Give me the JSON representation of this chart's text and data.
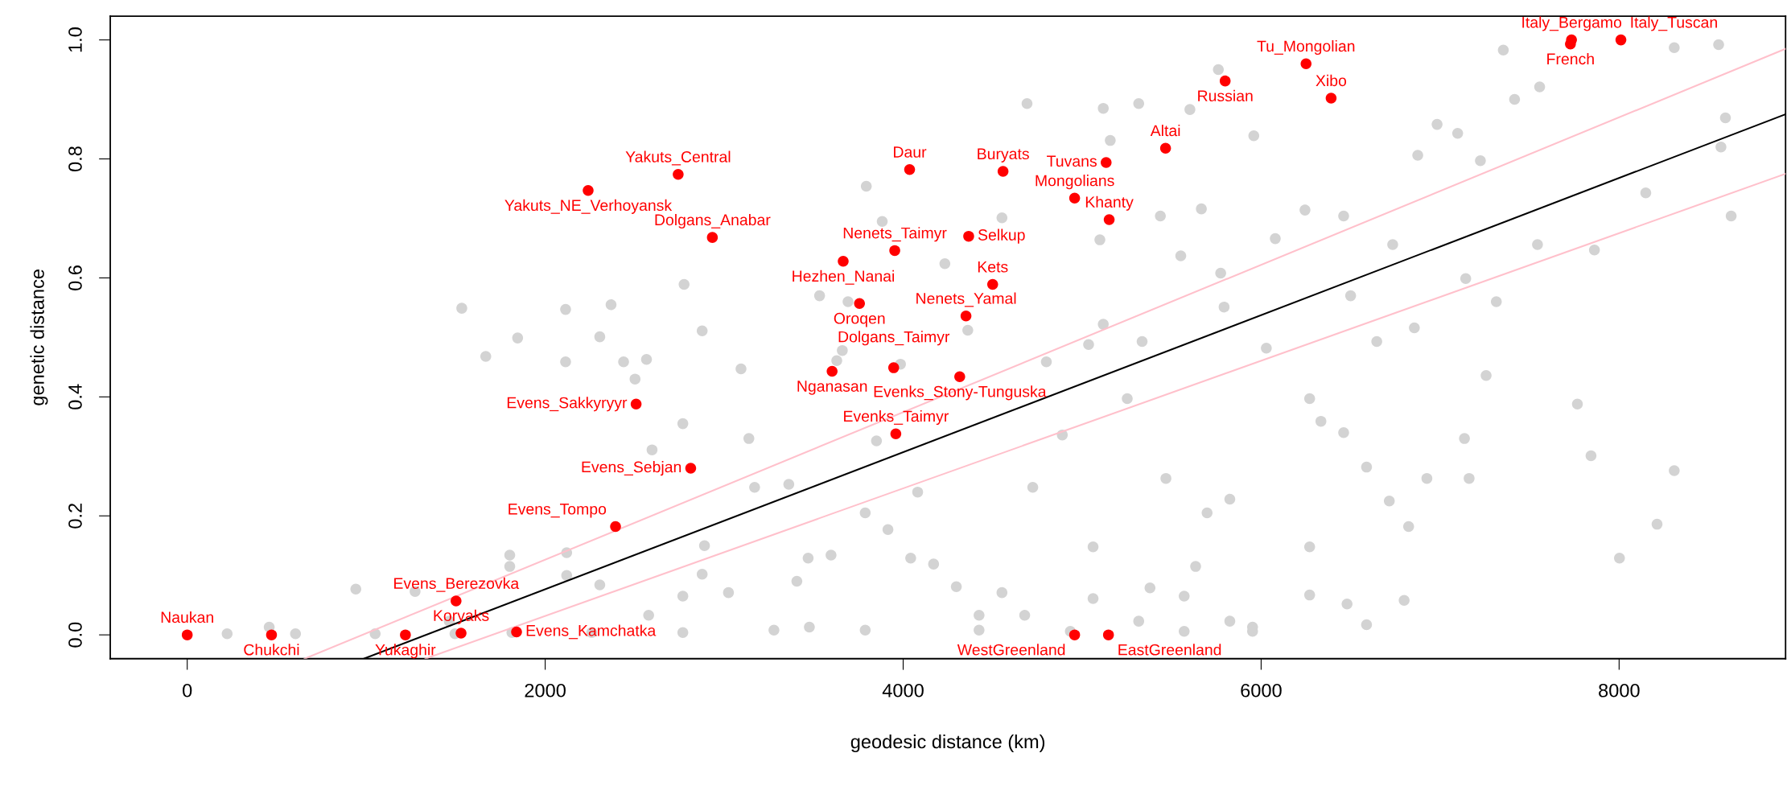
{
  "chart_data": {
    "type": "scatter",
    "xlabel": "geodesic distance (km)",
    "ylabel": "genetic distance",
    "xlim": [
      -430,
      8930
    ],
    "ylim": [
      -0.04,
      1.04
    ],
    "xticks": [
      0,
      2000,
      4000,
      6000,
      8000
    ],
    "yticks": [
      {
        "value": 0,
        "label": "0.0"
      },
      {
        "value": 0.2,
        "label": "0.2"
      },
      {
        "value": 0.4,
        "label": "0.4"
      },
      {
        "value": 0.6,
        "label": "0.6"
      },
      {
        "value": 0.8,
        "label": "0.8"
      },
      {
        "value": 1.0,
        "label": "1.0"
      }
    ],
    "grid": false,
    "marker": "circle",
    "series": [
      {
        "color": "#d3d3d3",
        "x": [
          223,
          605,
          1050,
          1496,
          1814,
          2260,
          2769,
          3278,
          3788,
          4424,
          4934,
          5570,
          5952,
          6589,
          6480,
          458,
          942,
          1273,
          1464,
          1802,
          1802,
          2120,
          2120,
          2305,
          2578,
          2769,
          3024,
          3406,
          3469,
          3597,
          3788,
          3915,
          4042,
          4170,
          4297,
          4424,
          4552,
          4679,
          5061,
          5316,
          5570,
          5825,
          5952,
          1534,
          1668,
          1846,
          2114,
          2114,
          2305,
          2368,
          2438,
          2502,
          2566,
          2597,
          2769,
          2776,
          2877,
          2877,
          2890,
          3094,
          3138,
          3170,
          3361,
          3476,
          3533,
          3794,
          3629,
          3660,
          3692,
          3851,
          3883,
          3985,
          4081,
          4233,
          4361,
          4552,
          4692,
          4724,
          4800,
          4889,
          5036,
          5099,
          5118,
          5118,
          5157,
          5252,
          5316,
          5335,
          5437,
          5551,
          5602,
          5666,
          5774,
          5761,
          5793,
          5959,
          6029,
          6079,
          6245,
          6461,
          6500,
          6646,
          6735,
          6856,
          6875,
          6983,
          7098,
          7225,
          7353,
          7416,
          7556,
          7767,
          7843,
          8002,
          8308,
          8569,
          8626,
          7257,
          7314,
          7544,
          7862,
          8149,
          8212,
          8556,
          8594,
          6799,
          6824,
          7143,
          6926,
          7162,
          7136,
          6716,
          6271,
          6271,
          6334,
          6461,
          6589,
          6271,
          5468,
          5698,
          5825,
          5634,
          5379,
          5061,
          8308
        ],
        "values": [
          0.002,
          0.002,
          0.002,
          0.002,
          0.004,
          0.004,
          0.004,
          0.008,
          0.008,
          0.008,
          0.006,
          0.006,
          0.006,
          0.017,
          0.052,
          0.013,
          0.077,
          0.073,
          0.023,
          0.115,
          0.134,
          0.1,
          0.138,
          0.084,
          0.033,
          0.065,
          0.071,
          0.09,
          0.129,
          0.134,
          0.205,
          0.177,
          0.129,
          0.119,
          0.081,
          0.033,
          0.071,
          0.033,
          0.061,
          0.023,
          0.065,
          0.023,
          0.013,
          0.549,
          0.468,
          0.499,
          0.547,
          0.459,
          0.501,
          0.555,
          0.459,
          0.43,
          0.463,
          0.311,
          0.355,
          0.589,
          0.511,
          0.102,
          0.15,
          0.447,
          0.33,
          0.248,
          0.253,
          0.013,
          0.57,
          0.754,
          0.461,
          0.478,
          0.56,
          0.326,
          0.695,
          0.455,
          0.24,
          0.624,
          0.512,
          0.701,
          0.893,
          0.248,
          0.459,
          0.336,
          0.488,
          0.664,
          0.522,
          0.885,
          0.831,
          0.397,
          0.893,
          0.493,
          0.704,
          0.637,
          0.883,
          0.716,
          0.608,
          0.95,
          0.551,
          0.839,
          0.482,
          0.666,
          0.714,
          0.704,
          0.57,
          0.493,
          0.656,
          0.516,
          0.806,
          0.858,
          0.843,
          0.797,
          0.983,
          0.9,
          0.921,
          0.388,
          0.301,
          0.129,
          0.987,
          0.82,
          0.704,
          0.436,
          0.56,
          0.656,
          0.647,
          0.743,
          0.186,
          0.992,
          0.869,
          0.058,
          0.182,
          0.599,
          0.263,
          0.263,
          0.33,
          0.225,
          0.148,
          0.397,
          0.359,
          0.34,
          0.282,
          0.067,
          0.263,
          0.205,
          0.228,
          0.115,
          0.079,
          0.148,
          0.276
        ]
      },
      {
        "type": "line",
        "marker": "none",
        "color": "#000000",
        "x": [
          987,
          8930
        ],
        "values": [
          -0.04,
          0.875
        ]
      },
      {
        "type": "line",
        "marker": "none",
        "color": "#ffc0cb",
        "x": [
          656,
          8930
        ],
        "values": [
          -0.04,
          0.985
        ]
      },
      {
        "type": "line",
        "marker": "none",
        "color": "#ffc0cb",
        "x": [
          1331,
          8930
        ],
        "values": [
          -0.04,
          0.775
        ]
      },
      {
        "color": "#ff0000",
        "x": [
          0,
          471,
          1219,
          1530,
          1840,
          1502,
          2393,
          2813,
          2508,
          3959,
          3603,
          3947,
          4316,
          3756,
          4351,
          4500,
          3665,
          3953,
          4366,
          5151,
          4958,
          2934,
          2240,
          2743,
          4036,
          4558,
          5134,
          5466,
          5799,
          6251,
          6391,
          4958,
          5147,
          7734,
          8010,
          7728
        ],
        "values": [
          0,
          0,
          0,
          0.003,
          0.005,
          0.057,
          0.182,
          0.28,
          0.388,
          0.338,
          0.443,
          0.449,
          0.434,
          0.557,
          0.536,
          0.589,
          0.628,
          0.646,
          0.67,
          0.698,
          0.734,
          0.668,
          0.747,
          0.774,
          0.782,
          0.779,
          0.794,
          0.818,
          0.931,
          0.96,
          0.902,
          0,
          0,
          1.0,
          1.0,
          0.993
        ],
        "value_labels": [
          "Naukan",
          "Chukchi",
          "Yukaghir",
          "Koryaks",
          "Evens_Kamchatka",
          "Evens_Berezovka",
          "Evens_Tompo",
          "Evens_Sebjan",
          "Evens_Sakkyryyr",
          "Evenks_Taimyr",
          "Nganasan",
          "Dolgans_Taimyr",
          "Evenks_Stony-Tunguska",
          "Oroqen",
          "Nenets_Yamal",
          "Kets",
          "Hezhen_Nanai",
          "Nenets_Taimyr",
          "Selkup",
          "Khanty",
          "Mongolians",
          "Dolgans_Anabar",
          "Yakuts_NE_Verhoyansk",
          "Yakuts_Central",
          "Daur",
          "Buryats",
          "Tuvans",
          "Altai",
          "Russian",
          "Tu_Mongolian",
          "Xibo",
          "WestGreenland",
          "EastGreenland",
          "Italy_Bergamo",
          "Italy_Tuscan",
          "French"
        ]
      }
    ]
  }
}
